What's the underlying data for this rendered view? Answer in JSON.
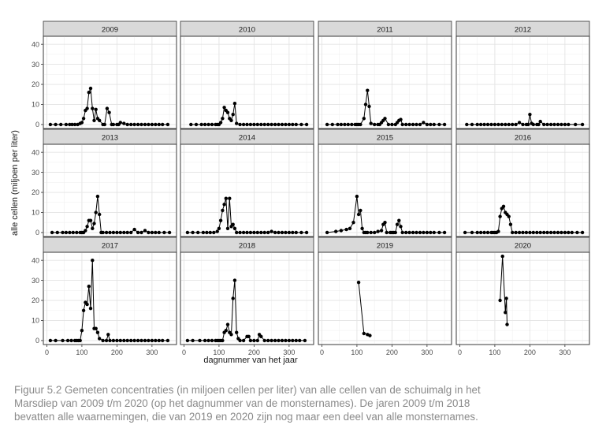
{
  "chart_data": {
    "type": "line",
    "facet_layout": "4 columns x 3 rows",
    "xlabel": "dagnummer van het jaar",
    "ylabel": "alle cellen (miljoen per liter)",
    "x_ticks": [
      "0",
      "100",
      "200",
      "300"
    ],
    "y_ticks": [
      "0",
      "10",
      "20",
      "30",
      "40"
    ],
    "xlim": [
      -10,
      370
    ],
    "ylim": [
      -2,
      44
    ],
    "grid": true,
    "panels": [
      {
        "label": "2009",
        "x": [
          10,
          25,
          40,
          55,
          65,
          72,
          80,
          88,
          95,
          100,
          105,
          110,
          115,
          120,
          125,
          130,
          135,
          140,
          145,
          150,
          160,
          165,
          172,
          178,
          185,
          190,
          200,
          205,
          210,
          220,
          230,
          240,
          250,
          260,
          270,
          280,
          290,
          300,
          310,
          320,
          330,
          345
        ],
        "y": [
          0,
          0,
          0,
          0,
          0,
          0,
          0,
          0,
          0.5,
          1,
          3,
          7,
          8,
          16,
          18,
          8,
          2,
          7.5,
          3,
          2,
          0,
          0,
          8,
          6,
          0,
          0,
          0,
          0,
          1,
          0.5,
          0,
          0,
          0,
          0,
          0,
          0,
          0,
          0,
          0,
          0,
          0,
          0
        ]
      },
      {
        "label": "2010",
        "x": [
          20,
          35,
          50,
          60,
          70,
          80,
          90,
          95,
          100,
          105,
          110,
          115,
          120,
          125,
          130,
          135,
          140,
          145,
          150,
          160,
          170,
          180,
          190,
          200,
          210,
          220,
          230,
          240,
          250,
          260,
          270,
          280,
          290,
          300,
          310,
          320,
          335,
          350
        ],
        "y": [
          0,
          0,
          0,
          0,
          0,
          0,
          0,
          0,
          0,
          1,
          3,
          8.5,
          7,
          6,
          3,
          2,
          5,
          10.5,
          0.5,
          0,
          0,
          0,
          0,
          0,
          0,
          0,
          0,
          0,
          0,
          0,
          0,
          0,
          0,
          0,
          0,
          0,
          0,
          0
        ]
      },
      {
        "label": "2011",
        "x": [
          15,
          30,
          45,
          55,
          65,
          75,
          85,
          95,
          100,
          105,
          110,
          120,
          125,
          130,
          135,
          140,
          150,
          160,
          165,
          170,
          175,
          180,
          190,
          200,
          210,
          215,
          220,
          225,
          230,
          240,
          250,
          260,
          270,
          280,
          290,
          300,
          310,
          320,
          335,
          350
        ],
        "y": [
          0,
          0,
          0,
          0,
          0,
          0,
          0,
          0,
          0,
          0,
          0,
          3,
          10,
          17,
          9,
          0.5,
          0,
          0,
          0,
          1,
          2,
          3,
          0,
          0,
          0,
          1,
          2,
          2.5,
          0,
          0,
          0,
          0,
          0,
          0,
          1,
          0,
          0,
          0,
          0,
          0
        ]
      },
      {
        "label": "2012",
        "x": [
          20,
          35,
          50,
          60,
          70,
          80,
          90,
          100,
          110,
          120,
          130,
          140,
          150,
          160,
          170,
          180,
          190,
          195,
          200,
          205,
          210,
          220,
          225,
          230,
          240,
          250,
          260,
          270,
          280,
          290,
          300,
          310,
          330,
          350
        ],
        "y": [
          0,
          0,
          0,
          0,
          0,
          0,
          0,
          0,
          0,
          0,
          0,
          0,
          0,
          0,
          1,
          0,
          0,
          0,
          5,
          0.5,
          0,
          0,
          0,
          1.5,
          0,
          0,
          0,
          0,
          0,
          0,
          0,
          0,
          0,
          0
        ]
      },
      {
        "label": "2013",
        "x": [
          15,
          30,
          45,
          55,
          65,
          75,
          85,
          95,
          100,
          105,
          110,
          115,
          120,
          125,
          130,
          135,
          140,
          145,
          150,
          155,
          160,
          170,
          180,
          190,
          200,
          210,
          220,
          230,
          240,
          250,
          260,
          270,
          280,
          290,
          300,
          310,
          320,
          335,
          350
        ],
        "y": [
          0,
          0,
          0,
          0,
          0,
          0,
          0,
          0,
          0,
          0,
          1,
          3,
          6,
          6,
          2,
          4.5,
          10,
          18,
          9,
          0,
          0,
          0,
          0,
          0,
          0,
          0,
          0,
          0,
          0,
          1.5,
          0,
          0,
          1,
          0,
          0,
          0,
          0,
          0,
          0
        ]
      },
      {
        "label": "2014",
        "x": [
          10,
          25,
          40,
          55,
          65,
          75,
          85,
          95,
          100,
          105,
          110,
          115,
          120,
          125,
          130,
          135,
          140,
          145,
          150,
          160,
          170,
          180,
          190,
          200,
          210,
          220,
          230,
          240,
          250,
          260,
          270,
          280,
          290,
          300,
          310,
          320,
          335,
          350
        ],
        "y": [
          0,
          0,
          0,
          0,
          0,
          0,
          0,
          0.5,
          2,
          6,
          11,
          14,
          17,
          2,
          17,
          3,
          4,
          2,
          0,
          0,
          0,
          0,
          0,
          0,
          0,
          0,
          0,
          0,
          0.5,
          0,
          0,
          0,
          0,
          0,
          0,
          0,
          0,
          0
        ]
      },
      {
        "label": "2015",
        "x": [
          15,
          40,
          55,
          70,
          80,
          90,
          100,
          105,
          110,
          115,
          120,
          125,
          130,
          140,
          150,
          160,
          170,
          175,
          180,
          185,
          195,
          200,
          205,
          210,
          215,
          220,
          225,
          230,
          240,
          250,
          260,
          270,
          280,
          290,
          300,
          310,
          320,
          335,
          350
        ],
        "y": [
          0,
          0.5,
          1,
          1.5,
          2,
          5,
          18,
          9,
          11,
          2,
          0,
          0,
          0,
          0,
          0,
          0.5,
          1,
          4,
          5,
          0,
          0,
          0,
          0,
          0,
          4,
          6,
          3,
          0,
          0,
          0,
          0,
          0,
          0,
          0,
          0,
          0,
          0,
          0,
          0
        ]
      },
      {
        "label": "2016",
        "x": [
          15,
          35,
          50,
          60,
          70,
          80,
          90,
          95,
          100,
          105,
          110,
          115,
          120,
          125,
          130,
          135,
          140,
          145,
          150,
          160,
          170,
          180,
          190,
          200,
          210,
          220,
          230,
          240,
          250,
          260,
          270,
          280,
          290,
          300,
          310,
          320,
          335,
          350
        ],
        "y": [
          0,
          0,
          0,
          0,
          0,
          0,
          0,
          0,
          0,
          0,
          0.5,
          8,
          12,
          13,
          10,
          9,
          8,
          4,
          0,
          0,
          0,
          0,
          0,
          0,
          0,
          0,
          0,
          0,
          0,
          0,
          0,
          0,
          0,
          0,
          0,
          0,
          0,
          0
        ]
      },
      {
        "label": "2017",
        "x": [
          10,
          25,
          45,
          60,
          70,
          80,
          85,
          90,
          95,
          100,
          105,
          110,
          115,
          120,
          125,
          130,
          135,
          140,
          145,
          150,
          160,
          170,
          175,
          180,
          190,
          200,
          210,
          220,
          230,
          240,
          250,
          260,
          270,
          280,
          290,
          300,
          310,
          320,
          330,
          345
        ],
        "y": [
          0,
          0,
          0,
          0,
          0,
          0,
          0,
          0,
          0,
          5,
          15,
          19,
          18,
          27,
          16,
          40,
          6,
          6,
          4,
          1,
          0,
          0,
          3,
          0,
          0,
          0,
          0,
          0,
          0,
          0,
          0,
          0,
          0,
          0,
          0,
          0,
          0,
          0,
          0,
          0
        ]
      },
      {
        "label": "2018",
        "x": [
          10,
          25,
          45,
          60,
          70,
          80,
          90,
          95,
          100,
          105,
          110,
          115,
          120,
          125,
          130,
          135,
          140,
          145,
          150,
          155,
          160,
          170,
          180,
          185,
          190,
          200,
          210,
          215,
          220,
          230,
          240,
          250,
          260,
          270,
          280,
          290,
          300,
          310,
          320,
          330,
          345
        ],
        "y": [
          0,
          0,
          0,
          0,
          0,
          0,
          0,
          0,
          0,
          0,
          0,
          4,
          5,
          8,
          4,
          3,
          21,
          30,
          4,
          1,
          0,
          0,
          2,
          2,
          0,
          0,
          0,
          3,
          2,
          0,
          0,
          0,
          0,
          0,
          0,
          0,
          0,
          0,
          0,
          0,
          0
        ]
      },
      {
        "label": "2019",
        "x": [
          105,
          120,
          130,
          137
        ],
        "y": [
          29,
          3.5,
          3,
          2.5
        ]
      },
      {
        "label": "2020",
        "x": [
          115,
          122,
          130,
          133,
          135
        ],
        "y": [
          20,
          42,
          14,
          21,
          8
        ]
      }
    ]
  },
  "caption": {
    "lines": [
      "Figuur 5.2 Gemeten concentraties (in miljoen cellen per liter) van alle cellen van de schuimalg in het",
      "Marsdiep van 2009 t/m 2020 (op het dagnummer van de monsternames). De jaren 2009 t/m 2018",
      "bevatten alle waarnemingen, die van 2019 en 2020 zijn nog maar een deel van alle monsternames."
    ]
  }
}
